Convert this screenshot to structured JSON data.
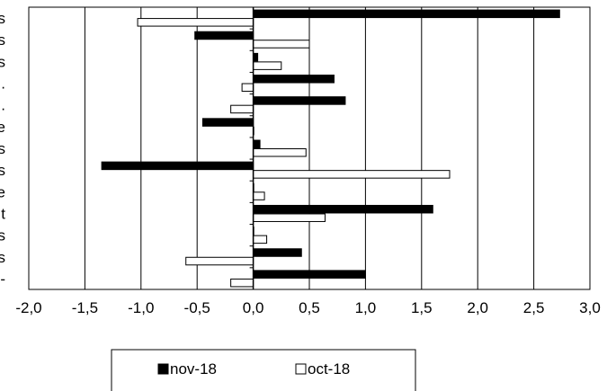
{
  "chart_data": {
    "type": "bar",
    "orientation": "horizontal",
    "categories": [
      "s",
      "s",
      "s",
      ".",
      "t...",
      "e",
      "s",
      "s",
      "e",
      "t",
      "s",
      "s",
      "-"
    ],
    "series": [
      {
        "name": "nov-18",
        "color": "#000000",
        "fill": "solid",
        "values": [
          2.73,
          -0.52,
          0.04,
          0.72,
          0.82,
          -0.45,
          0.06,
          -1.35,
          0.0,
          1.6,
          0.0,
          0.43,
          1.0
        ]
      },
      {
        "name": "oct-18",
        "color": "#000000",
        "fill": "hollow",
        "values": [
          -1.03,
          0.5,
          0.25,
          -0.1,
          -0.2,
          0.0,
          0.47,
          1.75,
          0.1,
          0.64,
          0.12,
          -0.6,
          -0.2
        ]
      }
    ],
    "xlim": [
      -2.0,
      3.0
    ],
    "x_ticks": [
      "-2,0",
      "-1,5",
      "-1,0",
      "-0,5",
      "0,0",
      "0,5",
      "1,0",
      "1,5",
      "2,0",
      "2,5",
      "3,0"
    ],
    "x_tick_values": [
      -2.0,
      -1.5,
      -1.0,
      -0.5,
      0.0,
      0.5,
      1.0,
      1.5,
      2.0,
      2.5,
      3.0
    ],
    "grid": "vertical",
    "legend_position": "bottom"
  }
}
